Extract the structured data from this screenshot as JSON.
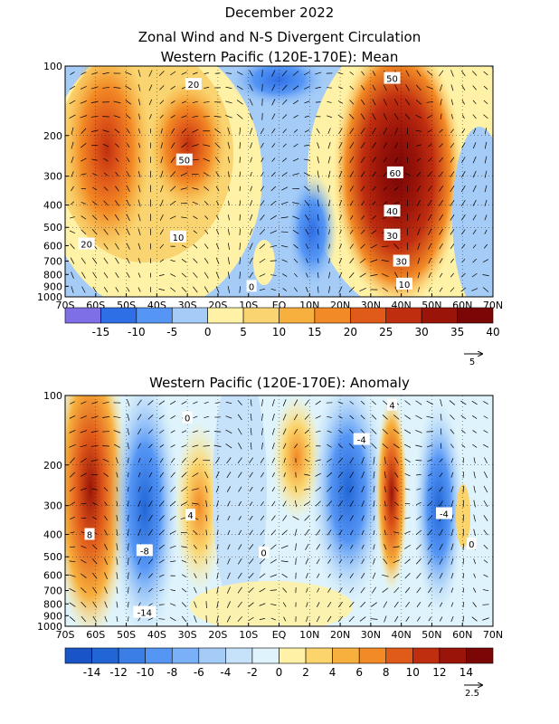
{
  "title": "December 2022",
  "subtitle": "Zonal Wind and N-S Divergent Circulation",
  "chart_data": [
    {
      "type": "heatmap",
      "title": "Western Pacific (120E-170E): Mean",
      "x_ticks": [
        "70S",
        "60S",
        "50S",
        "40S",
        "30S",
        "20S",
        "10S",
        "EQ",
        "10N",
        "20N",
        "30N",
        "40N",
        "50N",
        "60N",
        "70N"
      ],
      "y_ticks": [
        "100",
        "200",
        "300",
        "400",
        "500",
        "600",
        "700",
        "800",
        "900",
        "1000"
      ],
      "y_values": [
        100,
        200,
        300,
        400,
        500,
        600,
        700,
        800,
        900,
        1000
      ],
      "xlim": [
        -70,
        70
      ],
      "ylim": [
        1000,
        100
      ],
      "y_scale": "log",
      "colorbar": {
        "labels": [
          "-15",
          "-10",
          "-5",
          "0",
          "5",
          "10",
          "15",
          "20",
          "25",
          "30",
          "35",
          "40"
        ],
        "colors": [
          "#7f6fe6",
          "#2f6fe6",
          "#5596f5",
          "#a5ccf7",
          "#fff2a6",
          "#fad470",
          "#f7b03e",
          "#f28a25",
          "#e05a1a",
          "#c02e10",
          "#9a1409",
          "#7a0606"
        ]
      },
      "contour_labels": [
        {
          "text": "20",
          "lat": -28,
          "p": 120
        },
        {
          "text": "50",
          "lat": -31,
          "p": 255
        },
        {
          "text": "10",
          "lat": -33,
          "p": 550
        },
        {
          "text": "20",
          "lat": -63,
          "p": 590
        },
        {
          "text": "0",
          "lat": -9,
          "p": 900
        },
        {
          "text": "50",
          "lat": 37,
          "p": 113
        },
        {
          "text": "60",
          "lat": 38,
          "p": 290
        },
        {
          "text": "40",
          "lat": 37,
          "p": 425
        },
        {
          "text": "30",
          "lat": 37,
          "p": 540
        },
        {
          "text": "30",
          "lat": 40,
          "p": 700
        },
        {
          "text": "10",
          "lat": 41,
          "p": 880
        }
      ],
      "vector_scale": "5"
    },
    {
      "type": "heatmap",
      "title": "Western Pacific (120E-170E): Anomaly",
      "x_ticks": [
        "70S",
        "60S",
        "50S",
        "40S",
        "30S",
        "20S",
        "10S",
        "EQ",
        "10N",
        "20N",
        "30N",
        "40N",
        "50N",
        "60N",
        "70N"
      ],
      "y_ticks": [
        "100",
        "200",
        "300",
        "400",
        "500",
        "600",
        "700",
        "800",
        "900",
        "1000"
      ],
      "y_values": [
        100,
        200,
        300,
        400,
        500,
        600,
        700,
        800,
        900,
        1000
      ],
      "xlim": [
        -70,
        70
      ],
      "ylim": [
        1000,
        100
      ],
      "y_scale": "log",
      "colorbar": {
        "labels": [
          "-14",
          "-12",
          "-10",
          "-8",
          "-6",
          "-4",
          "-2",
          "0",
          "2",
          "4",
          "6",
          "8",
          "10",
          "12",
          "14"
        ],
        "colors": [
          "#1a55c8",
          "#2266d6",
          "#3b7fe6",
          "#5596f5",
          "#7ab0f7",
          "#a5ccf7",
          "#c6e2fa",
          "#def3fb",
          "#fff2a6",
          "#fbd46c",
          "#f7b03e",
          "#f28a25",
          "#e05a1a",
          "#c02e10",
          "#9a1409",
          "#7a0606"
        ]
      },
      "contour_labels": [
        {
          "text": "4",
          "lat": 37,
          "p": 110
        },
        {
          "text": "-4",
          "lat": 27,
          "p": 155
        },
        {
          "text": "0",
          "lat": -30,
          "p": 125
        },
        {
          "text": "4",
          "lat": -29,
          "p": 330
        },
        {
          "text": "-8",
          "lat": -44,
          "p": 470
        },
        {
          "text": "8",
          "lat": -62,
          "p": 400
        },
        {
          "text": "-14",
          "lat": -44,
          "p": 870
        },
        {
          "text": "0",
          "lat": -5,
          "p": 480
        },
        {
          "text": "-4",
          "lat": 54,
          "p": 325
        },
        {
          "text": "0",
          "lat": 63,
          "p": 440
        }
      ],
      "vector_scale": "2.5"
    }
  ]
}
